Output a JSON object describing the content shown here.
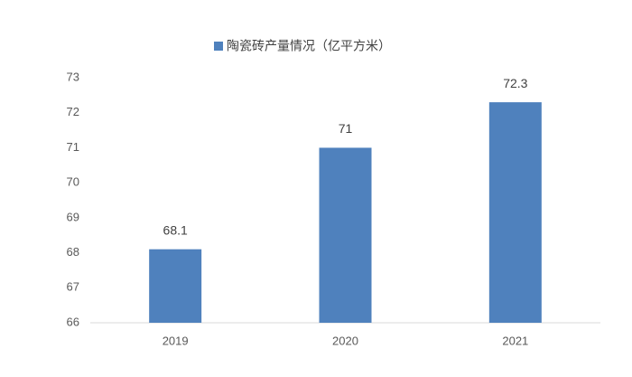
{
  "chart_data": {
    "type": "bar",
    "categories": [
      "2019",
      "2020",
      "2021"
    ],
    "series": [
      {
        "name": "陶瓷砖产量情况（亿平方米）",
        "color": "#4f81bd",
        "values": [
          68.1,
          71,
          72.3
        ]
      }
    ],
    "ylim": [
      66,
      73
    ],
    "yticks": [
      66,
      67,
      68,
      69,
      70,
      71,
      72,
      73
    ],
    "legend": "top",
    "grid": false
  }
}
